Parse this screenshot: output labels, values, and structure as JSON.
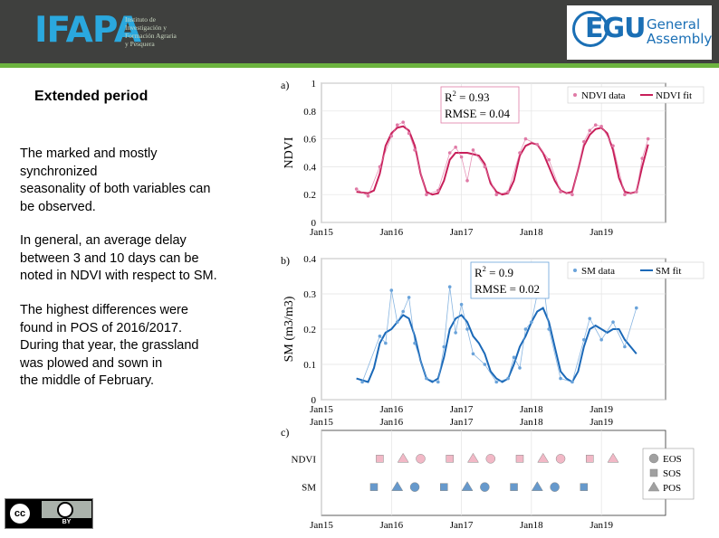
{
  "header": {
    "logo": "IFAPA",
    "logo_subtitle": "Instituto de\nInvestigación y\nFormación Agraria\ny Pesquera",
    "egu_logo": "EGU",
    "egu_general": "General",
    "egu_assembly": "Assembly",
    "colors": {
      "header_bg": "#3f403e",
      "accent": "#6cb33f",
      "ifapa_blue": "#2aa8de",
      "egu_blue": "#1a6fb5"
    }
  },
  "slide": {
    "title": "Extended period",
    "paragraphs": [
      "The marked and mostly\nsynchronized\nseasonality of both variables can\nbe observed.",
      " In general, an average delay\nbetween 3 and 10 days can be\nnoted in NDVI with respect to SM.",
      "The highest differences were\nfound in POS of 2016/2017.\nDuring that year, the grassland\nwas plowed and sown in\nthe middle of February."
    ],
    "license": {
      "cc": "cc",
      "by": "BY",
      "icon": "creative-commons-by-icon"
    }
  },
  "chart_data": [
    {
      "type": "line",
      "panel": "a)",
      "ylabel": "NDVI",
      "xlabel": "",
      "ylim": [
        0,
        1
      ],
      "yticks": [
        "0",
        "0.2",
        "0.4",
        "0.6",
        "0.8",
        "1"
      ],
      "xlim": [
        "2015-01",
        "2019-12"
      ],
      "xticks": [
        "Jan15",
        "Jan16",
        "Jan17",
        "Jan18",
        "Jan19"
      ],
      "legend": [
        "NDVI data",
        "NDVI fit"
      ],
      "legend_position": "top-right",
      "stats": {
        "r2": "R2 = 0.93",
        "rmse": "RMSE = 0.04"
      },
      "series": [
        {
          "name": "NDVI fit",
          "color": "#c81f5a",
          "x": [
            "2015-07",
            "2015-09",
            "2015-10",
            "2015-11",
            "2015-12",
            "2016-01",
            "2016-02",
            "2016-03",
            "2016-04",
            "2016-05",
            "2016-06",
            "2016-07",
            "2016-08",
            "2016-09",
            "2016-10",
            "2016-11",
            "2016-12",
            "2017-01",
            "2017-02",
            "2017-03",
            "2017-04",
            "2017-05",
            "2017-06",
            "2017-07",
            "2017-08",
            "2017-09",
            "2017-10",
            "2017-11",
            "2017-12",
            "2018-01",
            "2018-02",
            "2018-03",
            "2018-04",
            "2018-05",
            "2018-06",
            "2018-07",
            "2018-08",
            "2018-09",
            "2018-10",
            "2018-11",
            "2018-12",
            "2019-01",
            "2019-02",
            "2019-03",
            "2019-04",
            "2019-05",
            "2019-06",
            "2019-07",
            "2019-08",
            "2019-09"
          ],
          "y": [
            0.22,
            0.21,
            0.23,
            0.35,
            0.55,
            0.64,
            0.68,
            0.69,
            0.66,
            0.55,
            0.35,
            0.22,
            0.2,
            0.21,
            0.3,
            0.45,
            0.5,
            0.5,
            0.5,
            0.49,
            0.48,
            0.42,
            0.28,
            0.22,
            0.2,
            0.21,
            0.3,
            0.48,
            0.55,
            0.57,
            0.56,
            0.5,
            0.4,
            0.3,
            0.23,
            0.21,
            0.22,
            0.38,
            0.55,
            0.63,
            0.67,
            0.68,
            0.64,
            0.52,
            0.32,
            0.22,
            0.21,
            0.22,
            0.4,
            0.56
          ]
        },
        {
          "name": "NDVI data",
          "color": "#e07aa6",
          "x": [
            "2015-07",
            "2015-09",
            "2015-11",
            "2016-01",
            "2016-02",
            "2016-03",
            "2016-04",
            "2016-05",
            "2016-07",
            "2016-09",
            "2016-11",
            "2016-12",
            "2017-01",
            "2017-02",
            "2017-03",
            "2017-05",
            "2017-07",
            "2017-09",
            "2017-11",
            "2017-12",
            "2018-02",
            "2018-04",
            "2018-06",
            "2018-08",
            "2018-10",
            "2018-11",
            "2018-12",
            "2019-01",
            "2019-03",
            "2019-05",
            "2019-07",
            "2019-08",
            "2019-09"
          ],
          "y": [
            0.24,
            0.19,
            0.4,
            0.62,
            0.7,
            0.72,
            0.64,
            0.52,
            0.2,
            0.23,
            0.5,
            0.54,
            0.47,
            0.3,
            0.52,
            0.4,
            0.2,
            0.22,
            0.5,
            0.6,
            0.56,
            0.45,
            0.22,
            0.2,
            0.58,
            0.66,
            0.7,
            0.69,
            0.55,
            0.2,
            0.22,
            0.46,
            0.6
          ]
        }
      ]
    },
    {
      "type": "line",
      "panel": "b)",
      "ylabel": "SM (m3/m3)",
      "xlabel": "",
      "ylim": [
        0,
        0.4
      ],
      "yticks": [
        "0",
        "0.1",
        "0.2",
        "0.3",
        "0.4"
      ],
      "xlim": [
        "2015-01",
        "2019-12"
      ],
      "xticks": [
        "Jan15",
        "Jan16",
        "Jan17",
        "Jan18",
        "Jan19"
      ],
      "legend": [
        "SM data",
        "SM fit"
      ],
      "legend_position": "top-right",
      "stats": {
        "r2": "R2 = 0.9",
        "rmse": "RMSE = 0.02"
      },
      "series": [
        {
          "name": "SM fit",
          "color": "#1b69b8",
          "x": [
            "2015-07",
            "2015-09",
            "2015-10",
            "2015-11",
            "2015-12",
            "2016-01",
            "2016-02",
            "2016-03",
            "2016-04",
            "2016-05",
            "2016-06",
            "2016-07",
            "2016-08",
            "2016-09",
            "2016-10",
            "2016-11",
            "2016-12",
            "2017-01",
            "2017-02",
            "2017-03",
            "2017-04",
            "2017-05",
            "2017-06",
            "2017-07",
            "2017-08",
            "2017-09",
            "2017-10",
            "2017-11",
            "2017-12",
            "2018-01",
            "2018-02",
            "2018-03",
            "2018-04",
            "2018-05",
            "2018-06",
            "2018-07",
            "2018-08",
            "2018-09",
            "2018-10",
            "2018-11",
            "2018-12",
            "2019-01",
            "2019-02",
            "2019-03",
            "2019-04",
            "2019-05",
            "2019-06",
            "2019-07"
          ],
          "y": [
            0.06,
            0.05,
            0.09,
            0.16,
            0.19,
            0.2,
            0.22,
            0.24,
            0.23,
            0.18,
            0.11,
            0.06,
            0.05,
            0.06,
            0.12,
            0.2,
            0.23,
            0.24,
            0.22,
            0.18,
            0.16,
            0.13,
            0.08,
            0.06,
            0.05,
            0.06,
            0.1,
            0.15,
            0.18,
            0.22,
            0.25,
            0.26,
            0.22,
            0.15,
            0.08,
            0.06,
            0.05,
            0.08,
            0.15,
            0.2,
            0.21,
            0.2,
            0.19,
            0.2,
            0.2,
            0.17,
            0.15,
            0.13
          ]
        },
        {
          "name": "SM data",
          "color": "#6aa3da",
          "x": [
            "2015-08",
            "2015-11",
            "2015-12",
            "2016-01",
            "2016-02",
            "2016-03",
            "2016-04",
            "2016-05",
            "2016-07",
            "2016-09",
            "2016-10",
            "2016-11",
            "2016-12",
            "2017-01",
            "2017-02",
            "2017-03",
            "2017-05",
            "2017-07",
            "2017-09",
            "2017-10",
            "2017-11",
            "2017-12",
            "2018-01",
            "2018-02",
            "2018-03",
            "2018-04",
            "2018-06",
            "2018-08",
            "2018-10",
            "2018-11",
            "2019-01",
            "2019-03",
            "2019-05",
            "2019-07"
          ],
          "y": [
            0.05,
            0.18,
            0.16,
            0.31,
            0.22,
            0.25,
            0.29,
            0.16,
            0.06,
            0.05,
            0.15,
            0.32,
            0.19,
            0.27,
            0.2,
            0.13,
            0.1,
            0.05,
            0.06,
            0.12,
            0.09,
            0.2,
            0.22,
            0.3,
            0.34,
            0.2,
            0.06,
            0.05,
            0.17,
            0.23,
            0.17,
            0.22,
            0.15,
            0.26
          ]
        }
      ]
    },
    {
      "type": "scatter",
      "panel": "c)",
      "categories": [
        "NDVI",
        "SM"
      ],
      "xlim": [
        "2015-01",
        "2019-12"
      ],
      "xticks": [
        "Jan15",
        "Jan16",
        "Jan17",
        "Jan18",
        "Jan19"
      ],
      "legend": [
        "EOS",
        "SOS",
        "POS"
      ],
      "legend_position": "right",
      "markers": {
        "EOS": "circle",
        "SOS": "square",
        "POS": "triangle"
      },
      "colors": {
        "NDVI": "#f2b8c6",
        "SM": "#6699cc"
      },
      "events": {
        "NDVI": {
          "SOS": [
            "2015-11",
            "2016-11",
            "2017-11",
            "2018-11"
          ],
          "POS": [
            "2016-03",
            "2017-03",
            "2018-03",
            "2019-03"
          ],
          "EOS": [
            "2016-06",
            "2017-06",
            "2018-06"
          ]
        },
        "SM": {
          "SOS": [
            "2015-10",
            "2016-10",
            "2017-10",
            "2018-10"
          ],
          "POS": [
            "2016-02",
            "2017-02",
            "2018-02"
          ],
          "EOS": [
            "2016-05",
            "2017-05",
            "2018-05"
          ]
        }
      }
    }
  ]
}
